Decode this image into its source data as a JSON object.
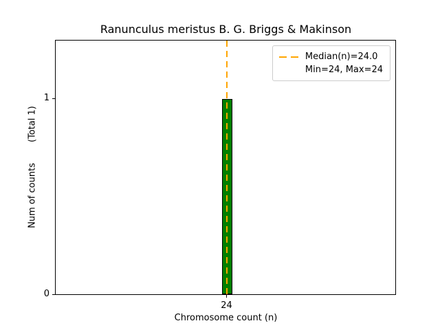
{
  "chart_data": {
    "type": "bar",
    "title": "Ranunculus meristus B. G. Briggs & Makinson",
    "xlabel": "Chromosome count (n)",
    "ylabel": "Num of counts",
    "ylabel_suffix": "(Total 1)",
    "categories": [
      24
    ],
    "values": [
      1
    ],
    "x_tick_labels": [
      "24"
    ],
    "y_tick_labels": [
      "0",
      "1"
    ],
    "ylim": [
      0,
      1.3
    ],
    "median": 24.0,
    "min": 24,
    "max": 24,
    "total_counts": 1,
    "grid": false,
    "legend": {
      "position": "upper right",
      "entries": [
        "Median(n)=24.0",
        "Min=24, Max=24"
      ]
    },
    "colors": {
      "bar_fill": "#008000",
      "bar_edge": "#000000",
      "median_line": "#FFA500",
      "background": "#FFFFFF"
    }
  }
}
